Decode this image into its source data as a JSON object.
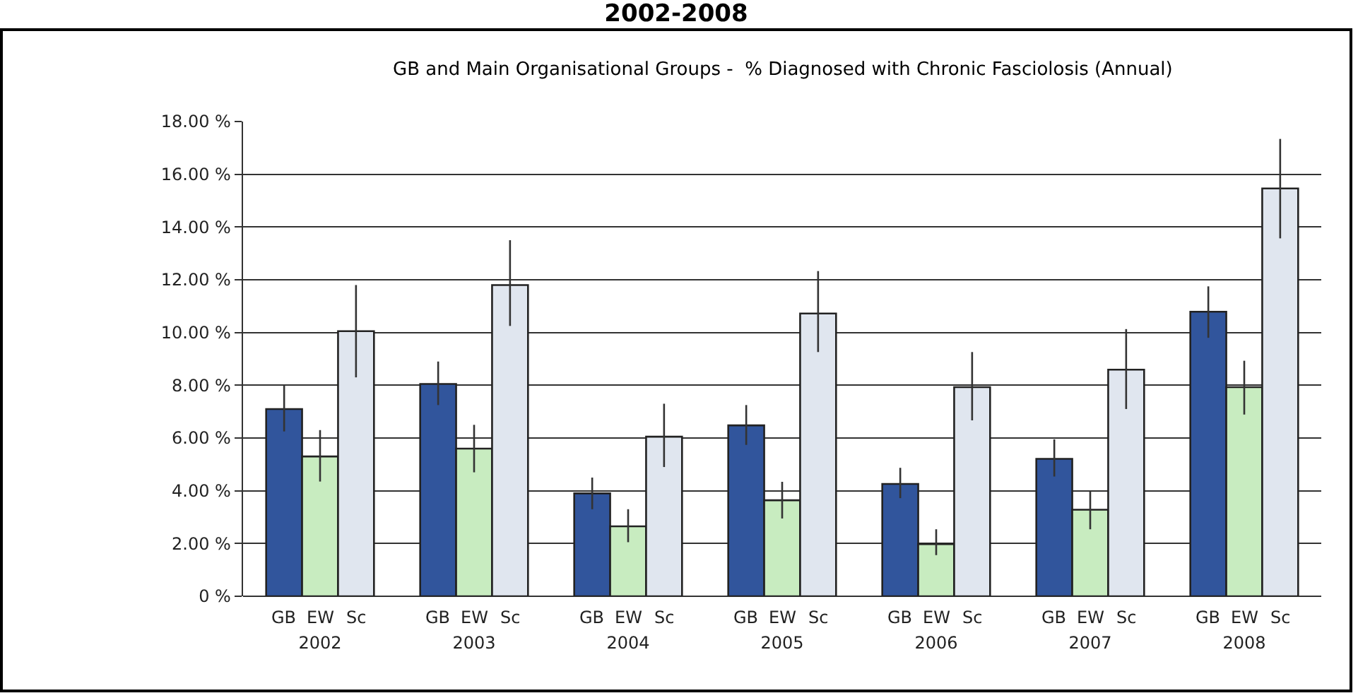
{
  "chart_data": {
    "type": "bar",
    "title": "2002-2008",
    "subtitle": "GB and Main Organisational Groups -  % Diagnosed with Chronic Fasciolosis (Annual)",
    "categories": [
      "2002",
      "2003",
      "2004",
      "2005",
      "2006",
      "2007",
      "2008"
    ],
    "series": [
      {
        "name": "GB",
        "color": "#31559c",
        "values": [
          7.1,
          8.05,
          3.9,
          6.48,
          4.26,
          5.21,
          10.79
        ],
        "errors": [
          [
            6.25,
            8.0
          ],
          [
            7.25,
            8.9
          ],
          [
            3.3,
            4.5
          ],
          [
            5.74,
            7.25
          ],
          [
            3.72,
            4.87
          ],
          [
            4.54,
            5.95
          ],
          [
            9.8,
            11.75
          ]
        ]
      },
      {
        "name": "EW",
        "color": "#c8ecc0",
        "values": [
          5.3,
          5.6,
          2.65,
          3.64,
          1.98,
          3.28,
          7.93
        ],
        "errors": [
          [
            4.35,
            6.3
          ],
          [
            4.7,
            6.5
          ],
          [
            2.05,
            3.3
          ],
          [
            2.95,
            4.34
          ],
          [
            1.56,
            2.54
          ],
          [
            2.54,
            3.98
          ],
          [
            6.89,
            8.93
          ]
        ]
      },
      {
        "name": "Sc",
        "color": "#e0e6ef",
        "values": [
          10.05,
          11.8,
          6.05,
          10.72,
          7.93,
          8.59,
          15.46
        ],
        "errors": [
          [
            8.3,
            11.8
          ],
          [
            10.25,
            13.5
          ],
          [
            4.9,
            7.3
          ],
          [
            9.26,
            12.33
          ],
          [
            6.67,
            9.26
          ],
          [
            7.1,
            10.13
          ],
          [
            13.57,
            17.34
          ]
        ]
      }
    ],
    "ylim": [
      0,
      18
    ],
    "yticks": [
      {
        "value": 0,
        "label": "0 %"
      },
      {
        "value": 2,
        "label": "2.00 %"
      },
      {
        "value": 4,
        "label": "4.00 %"
      },
      {
        "value": 6,
        "label": "6.00 %"
      },
      {
        "value": 8,
        "label": "8.00 %"
      },
      {
        "value": 10,
        "label": "10.00 %"
      },
      {
        "value": 12,
        "label": "12.00 %"
      },
      {
        "value": 14,
        "label": "14.00 %"
      },
      {
        "value": 16,
        "label": "16.00 %"
      },
      {
        "value": 18,
        "label": "18.00 %"
      }
    ],
    "grid": "y"
  }
}
